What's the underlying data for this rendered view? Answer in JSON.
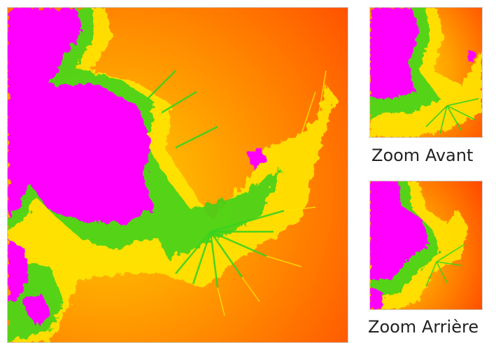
{
  "viewer": {
    "image_name": "julia-fractal-image",
    "colors": {
      "interior": "#ff00ff",
      "edge": "#39d11f",
      "yellow": "#ffe600",
      "orange": "#ffa300",
      "red": "#ff4a00"
    }
  },
  "controls": {
    "zoom_in_label": "Zoom Avant",
    "zoom_out_label": "Zoom Arrière"
  }
}
